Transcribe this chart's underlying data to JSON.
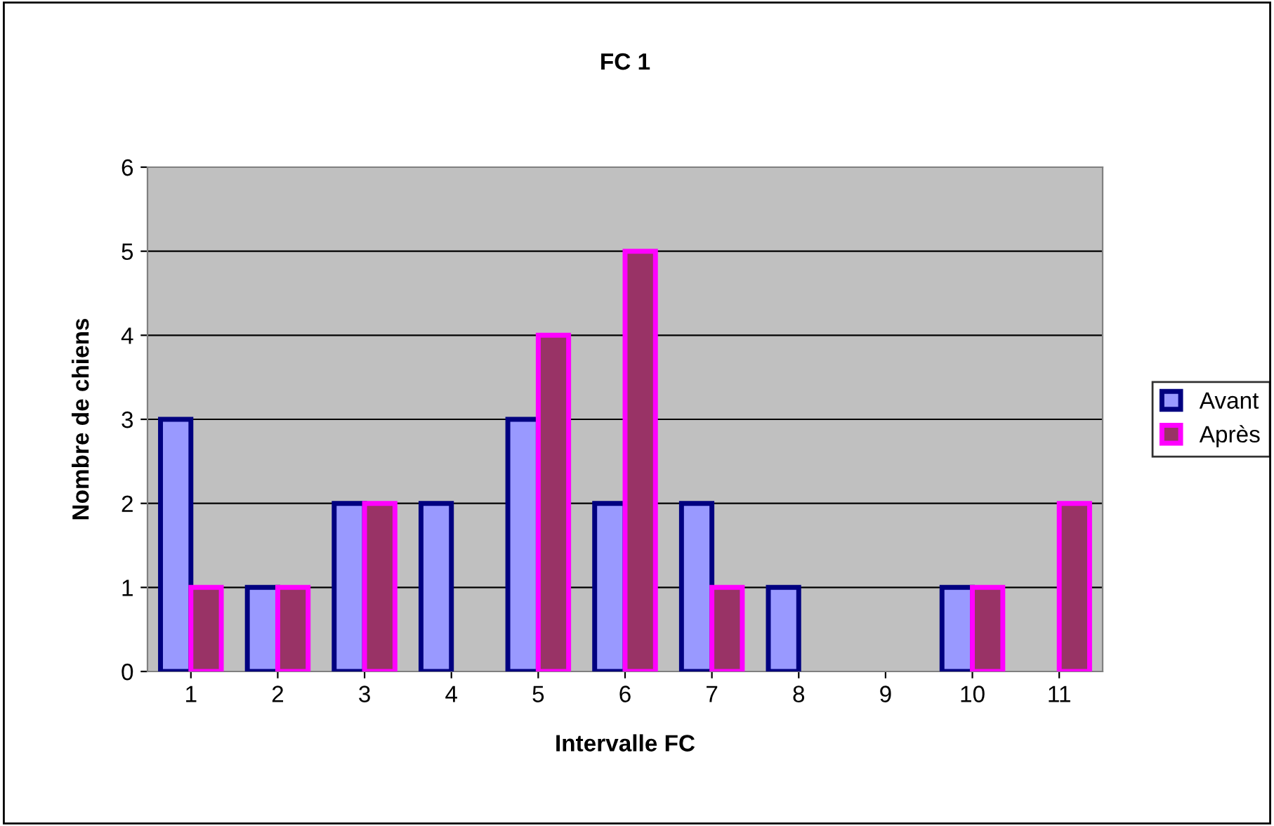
{
  "chart_data": {
    "type": "bar",
    "title": "FC 1",
    "xlabel": "Intervalle FC",
    "ylabel": "Nombre de chiens",
    "categories": [
      "1",
      "2",
      "3",
      "4",
      "5",
      "6",
      "7",
      "8",
      "9",
      "10",
      "11"
    ],
    "series": [
      {
        "name": "Avant",
        "color": "#9999ff",
        "values": [
          3,
          1,
          2,
          2,
          3,
          2,
          2,
          1,
          0,
          1,
          0
        ]
      },
      {
        "name": "Après",
        "color": "#993366",
        "values": [
          1,
          1,
          2,
          0,
          4,
          5,
          1,
          0,
          0,
          1,
          2
        ]
      }
    ],
    "ylim": [
      0,
      6
    ],
    "yticks": [
      0,
      1,
      2,
      3,
      4,
      5,
      6
    ],
    "grid": "y",
    "legend": "right"
  }
}
